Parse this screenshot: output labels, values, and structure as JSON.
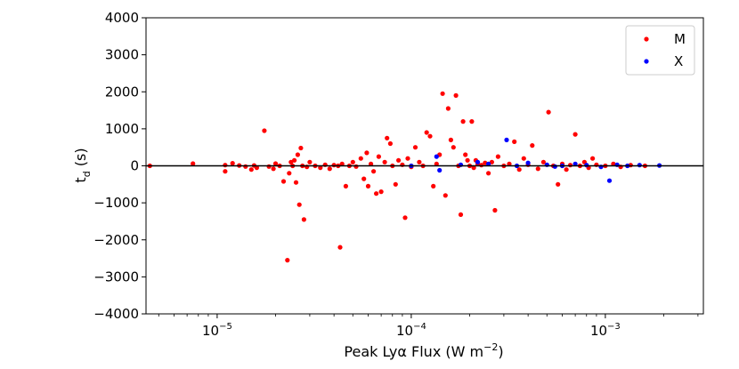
{
  "chart_data": {
    "type": "scatter",
    "xlabel": "Peak Lyα Flux (W m",
    "xlabel_sup": "−2",
    "xlabel_end": ")",
    "ylabel": "t",
    "ylabel_sub": "d",
    "ylabel_end": " (s)",
    "x_scale": "log",
    "xlim": [
      4.3e-06,
      0.0032
    ],
    "ylim": [
      -4000,
      4000
    ],
    "yticks": [
      4000,
      3000,
      2000,
      1000,
      0,
      -1000,
      -2000,
      -3000,
      -4000
    ],
    "ytick_labels": [
      "4000",
      "3000",
      "2000",
      "1000",
      "0",
      "−1000",
      "−2000",
      "−3000",
      "−4000"
    ],
    "xticks": [
      {
        "value": 1e-05,
        "base": "10",
        "exp": "−5"
      },
      {
        "value": 0.0001,
        "base": "10",
        "exp": "−4"
      },
      {
        "value": 0.001,
        "base": "10",
        "exp": "−3"
      }
    ],
    "hline": 0,
    "grid": false,
    "legend_position": "top-right",
    "series": [
      {
        "name": "M",
        "color": "#ff0000",
        "points": [
          [
            4.5e-06,
            0
          ],
          [
            7.5e-06,
            60
          ],
          [
            1.1e-05,
            -150
          ],
          [
            1.1e-05,
            20
          ],
          [
            1.2e-05,
            70
          ],
          [
            1.3e-05,
            10
          ],
          [
            1.4e-05,
            -20
          ],
          [
            1.5e-05,
            -100
          ],
          [
            1.55e-05,
            10
          ],
          [
            1.6e-05,
            -50
          ],
          [
            1.75e-05,
            950
          ],
          [
            1.85e-05,
            -20
          ],
          [
            1.95e-05,
            -80
          ],
          [
            2e-05,
            60
          ],
          [
            2.1e-05,
            0
          ],
          [
            2.2e-05,
            -420
          ],
          [
            2.3e-05,
            -2550
          ],
          [
            2.35e-05,
            -200
          ],
          [
            2.4e-05,
            100
          ],
          [
            2.45e-05,
            0
          ],
          [
            2.5e-05,
            150
          ],
          [
            2.55e-05,
            -450
          ],
          [
            2.6e-05,
            300
          ],
          [
            2.65e-05,
            -1050
          ],
          [
            2.7e-05,
            480
          ],
          [
            2.75e-05,
            0
          ],
          [
            2.8e-05,
            -1450
          ],
          [
            2.9e-05,
            -30
          ],
          [
            3e-05,
            100
          ],
          [
            3.2e-05,
            0
          ],
          [
            3.4e-05,
            -50
          ],
          [
            3.6e-05,
            30
          ],
          [
            3.8e-05,
            -80
          ],
          [
            4e-05,
            20
          ],
          [
            4.2e-05,
            0
          ],
          [
            4.3e-05,
            -2200
          ],
          [
            4.4e-05,
            50
          ],
          [
            4.6e-05,
            -550
          ],
          [
            4.8e-05,
            0
          ],
          [
            5e-05,
            100
          ],
          [
            5.2e-05,
            -20
          ],
          [
            5.5e-05,
            200
          ],
          [
            5.7e-05,
            -350
          ],
          [
            5.9e-05,
            350
          ],
          [
            6e-05,
            -550
          ],
          [
            6.2e-05,
            50
          ],
          [
            6.4e-05,
            -150
          ],
          [
            6.6e-05,
            -750
          ],
          [
            6.8e-05,
            250
          ],
          [
            7e-05,
            -700
          ],
          [
            7.3e-05,
            100
          ],
          [
            7.5e-05,
            750
          ],
          [
            7.8e-05,
            600
          ],
          [
            8e-05,
            0
          ],
          [
            8.3e-05,
            -500
          ],
          [
            8.6e-05,
            150
          ],
          [
            9e-05,
            30
          ],
          [
            9.3e-05,
            -1400
          ],
          [
            9.6e-05,
            200
          ],
          [
            0.0001,
            -30
          ],
          [
            0.000105,
            500
          ],
          [
            0.00011,
            100
          ],
          [
            0.000115,
            0
          ],
          [
            0.00012,
            900
          ],
          [
            0.000125,
            800
          ],
          [
            0.00013,
            -550
          ],
          [
            0.000135,
            50
          ],
          [
            0.00014,
            300
          ],
          [
            0.000145,
            1950
          ],
          [
            0.00015,
            -800
          ],
          [
            0.000155,
            1550
          ],
          [
            0.00016,
            700
          ],
          [
            0.000165,
            500
          ],
          [
            0.00017,
            1900
          ],
          [
            0.000175,
            0
          ],
          [
            0.00018,
            -1320
          ],
          [
            0.000185,
            1200
          ],
          [
            0.00019,
            300
          ],
          [
            0.000195,
            150
          ],
          [
            0.0002,
            0
          ],
          [
            0.000205,
            1200
          ],
          [
            0.00021,
            -50
          ],
          [
            0.000215,
            150
          ],
          [
            0.00022,
            50
          ],
          [
            0.00023,
            20
          ],
          [
            0.00024,
            80
          ],
          [
            0.00025,
            -200
          ],
          [
            0.00026,
            100
          ],
          [
            0.00027,
            -1200
          ],
          [
            0.00028,
            250
          ],
          [
            0.0003,
            0
          ],
          [
            0.00032,
            50
          ],
          [
            0.00034,
            650
          ],
          [
            0.00036,
            -100
          ],
          [
            0.00038,
            200
          ],
          [
            0.0004,
            30
          ],
          [
            0.00042,
            550
          ],
          [
            0.00045,
            -80
          ],
          [
            0.00048,
            100
          ],
          [
            0.00051,
            1450
          ],
          [
            0.00054,
            0
          ],
          [
            0.00057,
            -500
          ],
          [
            0.0006,
            50
          ],
          [
            0.00063,
            -100
          ],
          [
            0.00066,
            20
          ],
          [
            0.0007,
            850
          ],
          [
            0.00074,
            0
          ],
          [
            0.00078,
            100
          ],
          [
            0.00082,
            -50
          ],
          [
            0.00086,
            200
          ],
          [
            0.0009,
            30
          ],
          [
            0.001,
            0
          ],
          [
            0.0011,
            50
          ],
          [
            0.0012,
            -30
          ],
          [
            0.00135,
            20
          ],
          [
            0.0016,
            0
          ]
        ]
      },
      {
        "name": "X",
        "color": "#0000ff",
        "points": [
          [
            0.0001,
            0
          ],
          [
            0.000135,
            250
          ],
          [
            0.00014,
            -120
          ],
          [
            0.00018,
            30
          ],
          [
            0.00022,
            100
          ],
          [
            0.00025,
            50
          ],
          [
            0.00031,
            700
          ],
          [
            0.00035,
            0
          ],
          [
            0.0004,
            80
          ],
          [
            0.0005,
            30
          ],
          [
            0.00055,
            -20
          ],
          [
            0.0006,
            0
          ],
          [
            0.0007,
            50
          ],
          [
            0.0008,
            20
          ],
          [
            0.00095,
            -30
          ],
          [
            0.00105,
            -400
          ],
          [
            0.00115,
            30
          ],
          [
            0.0013,
            0
          ],
          [
            0.0015,
            20
          ],
          [
            0.0019,
            10
          ]
        ]
      }
    ]
  }
}
